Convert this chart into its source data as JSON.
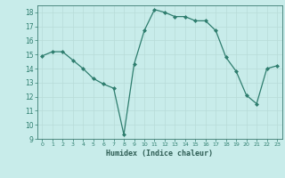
{
  "x": [
    0,
    1,
    2,
    3,
    4,
    5,
    6,
    7,
    8,
    9,
    10,
    11,
    12,
    13,
    14,
    15,
    16,
    17,
    18,
    19,
    20,
    21,
    22,
    23
  ],
  "y": [
    14.9,
    15.2,
    15.2,
    14.6,
    14.0,
    13.3,
    12.9,
    12.6,
    9.3,
    14.3,
    16.7,
    18.2,
    18.0,
    17.7,
    17.7,
    17.4,
    17.4,
    16.7,
    14.8,
    13.8,
    12.1,
    11.5,
    14.0,
    14.2
  ],
  "xlabel": "Humidex (Indice chaleur)",
  "ylim": [
    9,
    18.5
  ],
  "xlim": [
    -0.5,
    23.5
  ],
  "yticks": [
    9,
    10,
    11,
    12,
    13,
    14,
    15,
    16,
    17,
    18
  ],
  "xticks": [
    0,
    1,
    2,
    3,
    4,
    5,
    6,
    7,
    8,
    9,
    10,
    11,
    12,
    13,
    14,
    15,
    16,
    17,
    18,
    19,
    20,
    21,
    22,
    23
  ],
  "line_color": "#2e7d6e",
  "marker_color": "#2e7d6e",
  "bg_color": "#c8ecea",
  "grid_color": "#b8dbd8",
  "spine_color": "#3a7a70",
  "tick_color": "#2e7d6e",
  "xlabel_color": "#2e5d54"
}
